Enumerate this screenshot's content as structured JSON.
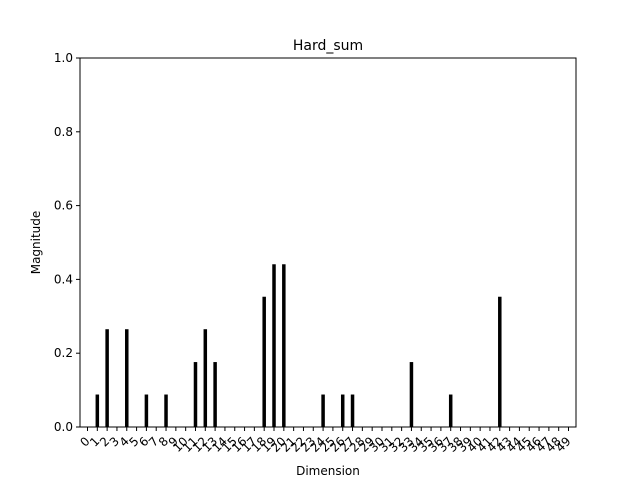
{
  "chart_data": {
    "type": "bar",
    "title": "Hard_sum",
    "xlabel": "Dimension",
    "ylabel": "Magnitude",
    "ylim": [
      0,
      1.0
    ],
    "yticks": [
      "0.0",
      "0.2",
      "0.4",
      "0.6",
      "0.8",
      "1.0"
    ],
    "categories": [
      "0",
      "1",
      "2",
      "3",
      "4",
      "5",
      "6",
      "7",
      "8",
      "9",
      "10",
      "11",
      "12",
      "13",
      "14",
      "15",
      "16",
      "17",
      "18",
      "19",
      "20",
      "21",
      "22",
      "23",
      "24",
      "25",
      "26",
      "27",
      "28",
      "29",
      "30",
      "31",
      "32",
      "33",
      "34",
      "35",
      "36",
      "37",
      "38",
      "39",
      "40",
      "41",
      "42",
      "43",
      "44",
      "45",
      "46",
      "47",
      "48",
      "49"
    ],
    "values": [
      0,
      0.088,
      0.265,
      0,
      0.265,
      0,
      0.088,
      0,
      0.088,
      0,
      0,
      0.176,
      0.265,
      0.176,
      0,
      0,
      0,
      0,
      0.353,
      0.441,
      0.441,
      0,
      0,
      0,
      0.088,
      0,
      0.088,
      0.088,
      0,
      0,
      0,
      0,
      0,
      0.176,
      0,
      0,
      0,
      0.088,
      0,
      0,
      0,
      0,
      0.353,
      0,
      0,
      0,
      0,
      0,
      0,
      0
    ],
    "bar_color": "#000000",
    "grid": false
  }
}
